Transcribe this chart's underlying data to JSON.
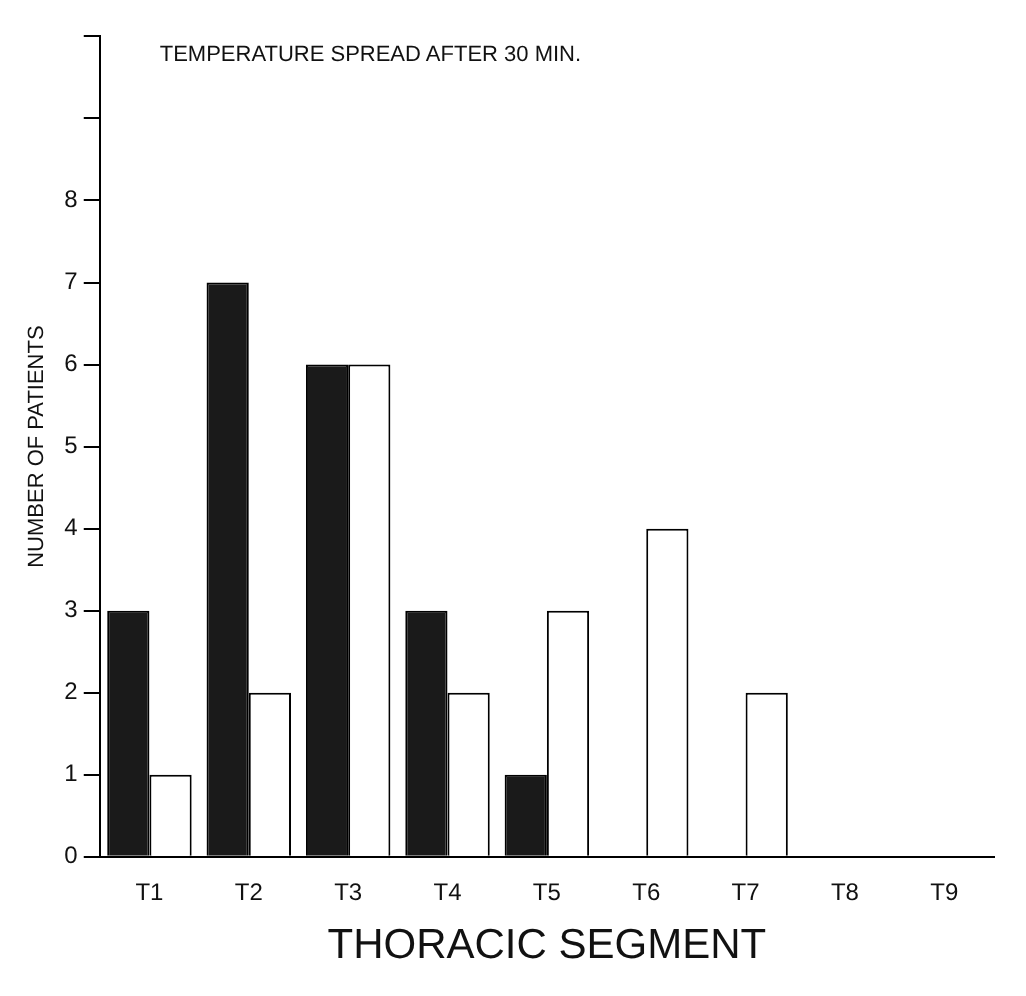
{
  "chart_data": {
    "type": "bar",
    "title": "TEMPERATURE SPREAD AFTER 30 MIN.",
    "xlabel": "THORACIC SEGMENT",
    "ylabel": "NUMBER OF PATIENTS",
    "categories": [
      "T1",
      "T2",
      "T3",
      "T4",
      "T5",
      "T6",
      "T7",
      "T8",
      "T9"
    ],
    "series": [
      {
        "color": "#1a1a1a",
        "values": [
          3,
          7,
          6,
          3,
          1,
          0,
          0,
          0,
          0
        ]
      },
      {
        "color": "#ffffff",
        "values": [
          1,
          2,
          6,
          2,
          3,
          4,
          2,
          0,
          0
        ]
      }
    ],
    "ylim": [
      0,
      10
    ],
    "yticks": [
      0,
      1,
      2,
      3,
      4,
      5,
      6,
      7,
      8,
      {
        "value": 9,
        "label": null
      },
      {
        "value": 10,
        "label": null
      }
    ],
    "grid": false,
    "legend": false
  }
}
